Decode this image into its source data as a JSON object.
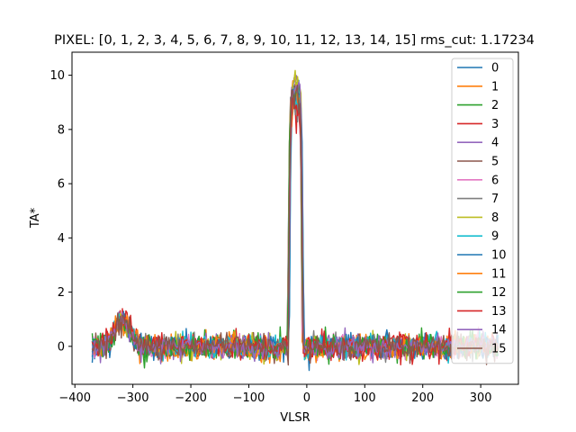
{
  "chart_data": {
    "type": "line",
    "title": "PIXEL: [0, 1, 2, 3, 4, 5, 6, 7, 8, 9, 10, 11, 12, 13, 14, 15]    rms_cut: 1.17234",
    "xlabel": "VLSR",
    "ylabel": "TA*",
    "xlim": [
      -405,
      365
    ],
    "ylim": [
      -1.4,
      10.85
    ],
    "xticks": [
      -400,
      -300,
      -200,
      -100,
      0,
      100,
      200,
      300
    ],
    "yticks": [
      0,
      2,
      4,
      6,
      8,
      10
    ],
    "x_range": [
      -370,
      330
    ],
    "legend_position": "top-right",
    "series": [
      {
        "name": "0",
        "color": "#1f77b4",
        "peak": 9.9
      },
      {
        "name": "1",
        "color": "#ff7f0e",
        "peak": 9.6
      },
      {
        "name": "2",
        "color": "#2ca02c",
        "peak": 9.8
      },
      {
        "name": "3",
        "color": "#d62728",
        "peak": 9.3
      },
      {
        "name": "4",
        "color": "#9467bd",
        "peak": 10.0
      },
      {
        "name": "5",
        "color": "#8c564b",
        "peak": 9.7
      },
      {
        "name": "6",
        "color": "#e377c2",
        "peak": 9.5
      },
      {
        "name": "7",
        "color": "#7f7f7f",
        "peak": 9.1
      },
      {
        "name": "8",
        "color": "#bcbd22",
        "peak": 10.3
      },
      {
        "name": "9",
        "color": "#17becf",
        "peak": 9.6
      },
      {
        "name": "10",
        "color": "#1f77b4",
        "peak": 9.8
      },
      {
        "name": "11",
        "color": "#ff7f0e",
        "peak": 9.5
      },
      {
        "name": "12",
        "color": "#2ca02c",
        "peak": 9.7
      },
      {
        "name": "13",
        "color": "#d62728",
        "peak": 9.2
      },
      {
        "name": "14",
        "color": "#9467bd",
        "peak": 9.9
      },
      {
        "name": "15",
        "color": "#8c564b",
        "peak": 9.6
      }
    ]
  }
}
